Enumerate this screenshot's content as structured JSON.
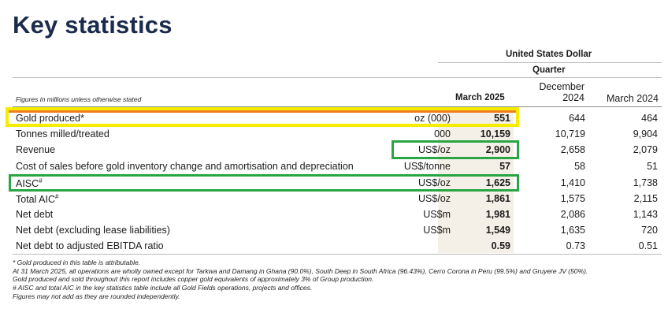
{
  "title": "Key statistics",
  "header": {
    "currency": "United States Dollar",
    "period_group": "Quarter",
    "note": "Figures in millions unless otherwise stated",
    "columns": [
      "March 2025",
      "December\n2024",
      "March 2024"
    ],
    "col2_line1": "December",
    "col2_line2": "2024"
  },
  "rows": [
    {
      "label": "Gold produced*",
      "unit": "oz (000)",
      "v1": "551",
      "v2": "644",
      "v3": "464"
    },
    {
      "label": "Tonnes milled/treated",
      "unit": "000",
      "v1": "10,159",
      "v2": "10,719",
      "v3": "9,904"
    },
    {
      "label": "Revenue",
      "unit": "US$/oz",
      "v1": "2,900",
      "v2": "2,658",
      "v3": "2,079"
    },
    {
      "label": "Cost of sales before gold inventory change and amortisation and depreciation",
      "unit": "US$/tonne",
      "v1": "57",
      "v2": "58",
      "v3": "51"
    },
    {
      "label": "AISC",
      "sup": "#",
      "unit": "US$/oz",
      "v1": "1,625",
      "v2": "1,410",
      "v3": "1,738"
    },
    {
      "label": "Total AIC",
      "sup": "#",
      "unit": "US$/oz",
      "v1": "1,861",
      "v2": "1,575",
      "v3": "2,115"
    },
    {
      "label": "Net debt",
      "unit": "US$m",
      "v1": "1,981",
      "v2": "2,086",
      "v3": "1,143"
    },
    {
      "label": "Net debt (excluding lease liabilities)",
      "unit": "US$m",
      "v1": "1,549",
      "v2": "1,635",
      "v3": "720"
    },
    {
      "label": "Net debt to adjusted EBITDA ratio",
      "unit": "",
      "v1": "0.59",
      "v2": "0.73",
      "v3": "0.51"
    }
  ],
  "footnotes": [
    "* Gold produced in this table is attributable.",
    "At 31 March 2025, all operations are wholly owned except for Tarkwa and Damang in Ghana (90.0%), South Deep in South Africa (96.43%), Cerro Corona in Peru (99.5%) and Gruyere JV (50%).",
    "Gold produced and sold throughout this report includes copper gold equivalents of approximately 3% of Group production.",
    "#  AISC and total AIC in the key statistics table include all Gold Fields operations, projects and offices.",
    "Figures may not add as they are rounded independently."
  ],
  "highlight_colors": {
    "yellow": "#f5ec00",
    "orange": "#f07d1e",
    "green": "#2aa543"
  }
}
